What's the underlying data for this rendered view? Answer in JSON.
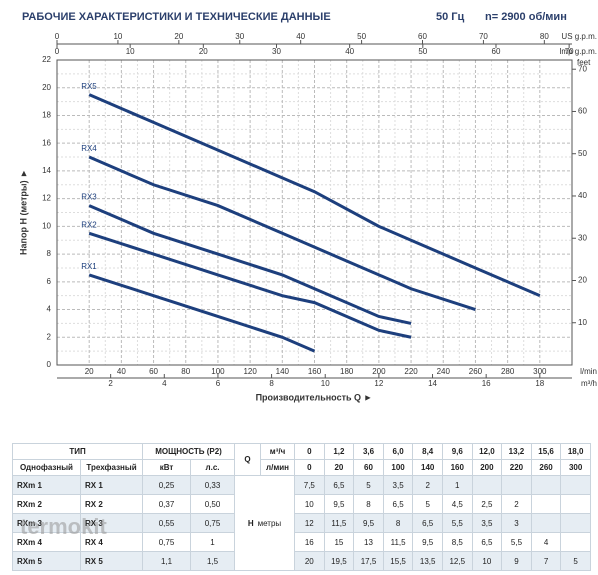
{
  "chart_data": {
    "type": "line",
    "title": "РАБОЧИЕ ХАРАКТЕРИСТИКИ И ТЕХНИЧЕСКИЕ ДАННЫЕ",
    "frequency": "50 Гц",
    "speed": "n= 2900 об/мин",
    "xlabel": "Производительность Q ►",
    "ylabel": "Напор H (метры) ►",
    "xunit": "l/min",
    "xlim": [
      0,
      320
    ],
    "xticks": [
      20,
      40,
      60,
      80,
      100,
      120,
      140,
      160,
      180,
      200,
      220,
      240,
      260,
      280,
      300
    ],
    "ylim": [
      0,
      22
    ],
    "yticks": [
      0,
      2,
      4,
      6,
      8,
      10,
      12,
      14,
      16,
      18,
      20,
      22
    ],
    "grid": true,
    "secondary_axes": [
      {
        "label": "US g.p.m.",
        "side": "top",
        "lim": [
          0,
          84.54
        ],
        "ticks": [
          0,
          10,
          20,
          30,
          40,
          50,
          60,
          70,
          80
        ]
      },
      {
        "label": "Imp g.p.m.",
        "side": "top-inner",
        "lim": [
          0,
          70.39
        ],
        "ticks": [
          0,
          10,
          20,
          30,
          40,
          50,
          60,
          70
        ]
      },
      {
        "label": "m³/h",
        "side": "bottom",
        "lim": [
          0,
          19.2
        ],
        "ticks": [
          2,
          4,
          6,
          8,
          10,
          12,
          14,
          16,
          18
        ]
      },
      {
        "label": "feet",
        "side": "right",
        "lim": [
          0,
          72.18
        ],
        "ticks": [
          10,
          20,
          30,
          40,
          50,
          60,
          70
        ]
      }
    ],
    "series": [
      {
        "name": "RX1",
        "color": "#1d3f7d",
        "x": [
          20,
          60,
          100,
          140,
          160
        ],
        "values": [
          6.5,
          5,
          3.5,
          2,
          1
        ]
      },
      {
        "name": "RX2",
        "color": "#1d3f7d",
        "x": [
          20,
          60,
          100,
          140,
          160,
          200,
          220
        ],
        "values": [
          9.5,
          8,
          6.5,
          5,
          4.5,
          2.5,
          2
        ]
      },
      {
        "name": "RX3",
        "color": "#1d3f7d",
        "x": [
          20,
          60,
          100,
          140,
          160,
          200,
          220
        ],
        "values": [
          11.5,
          9.5,
          8,
          6.5,
          5.5,
          3.5,
          3
        ]
      },
      {
        "name": "RX4",
        "color": "#1d3f7d",
        "x": [
          20,
          60,
          100,
          140,
          160,
          200,
          220,
          260
        ],
        "values": [
          15,
          13,
          11.5,
          9.5,
          8.5,
          6.5,
          5.5,
          4
        ]
      },
      {
        "name": "RX5",
        "color": "#1d3f7d",
        "x": [
          20,
          60,
          100,
          140,
          160,
          200,
          220,
          260,
          300
        ],
        "values": [
          19.5,
          17.5,
          15.5,
          13.5,
          12.5,
          10,
          9,
          7,
          5
        ]
      }
    ]
  },
  "table": {
    "type_header": "ТИП",
    "power_header": "МОЩНОСТЬ (P2)",
    "q_label": "Q",
    "q_units": [
      "м³/ч",
      "л/мин"
    ],
    "col_headers": [
      "Однофазный",
      "Трехфазный",
      "кВт",
      "л.с."
    ],
    "q_m3h": [
      "0",
      "1,2",
      "3,6",
      "6,0",
      "8,4",
      "9,6",
      "12,0",
      "13,2",
      "15,6",
      "18,0"
    ],
    "q_lmin": [
      "0",
      "20",
      "60",
      "100",
      "140",
      "160",
      "200",
      "220",
      "260",
      "300"
    ],
    "h_label": "H",
    "h_unit": "метры",
    "rows": [
      [
        "RXm 1",
        "RX 1",
        "0,25",
        "0,33",
        "7,5",
        "6,5",
        "5",
        "3,5",
        "2",
        "1"
      ],
      [
        "RXm 2",
        "RX 2",
        "0,37",
        "0,50",
        "10",
        "9,5",
        "8",
        "6,5",
        "5",
        "4,5",
        "2,5",
        "2"
      ],
      [
        "RXm 3",
        "RX 3",
        "0,55",
        "0,75",
        "12",
        "11,5",
        "9,5",
        "8",
        "6,5",
        "5,5",
        "3,5",
        "3"
      ],
      [
        "RXm 4",
        "RX 4",
        "0,75",
        "1",
        "16",
        "15",
        "13",
        "11,5",
        "9,5",
        "8,5",
        "6,5",
        "5,5",
        "4"
      ],
      [
        "RXm 5",
        "RX 5",
        "1,1",
        "1,5",
        "20",
        "19,5",
        "17,5",
        "15,5",
        "13,5",
        "12,5",
        "10",
        "9",
        "7",
        "5"
      ]
    ]
  },
  "watermark": "termokit"
}
